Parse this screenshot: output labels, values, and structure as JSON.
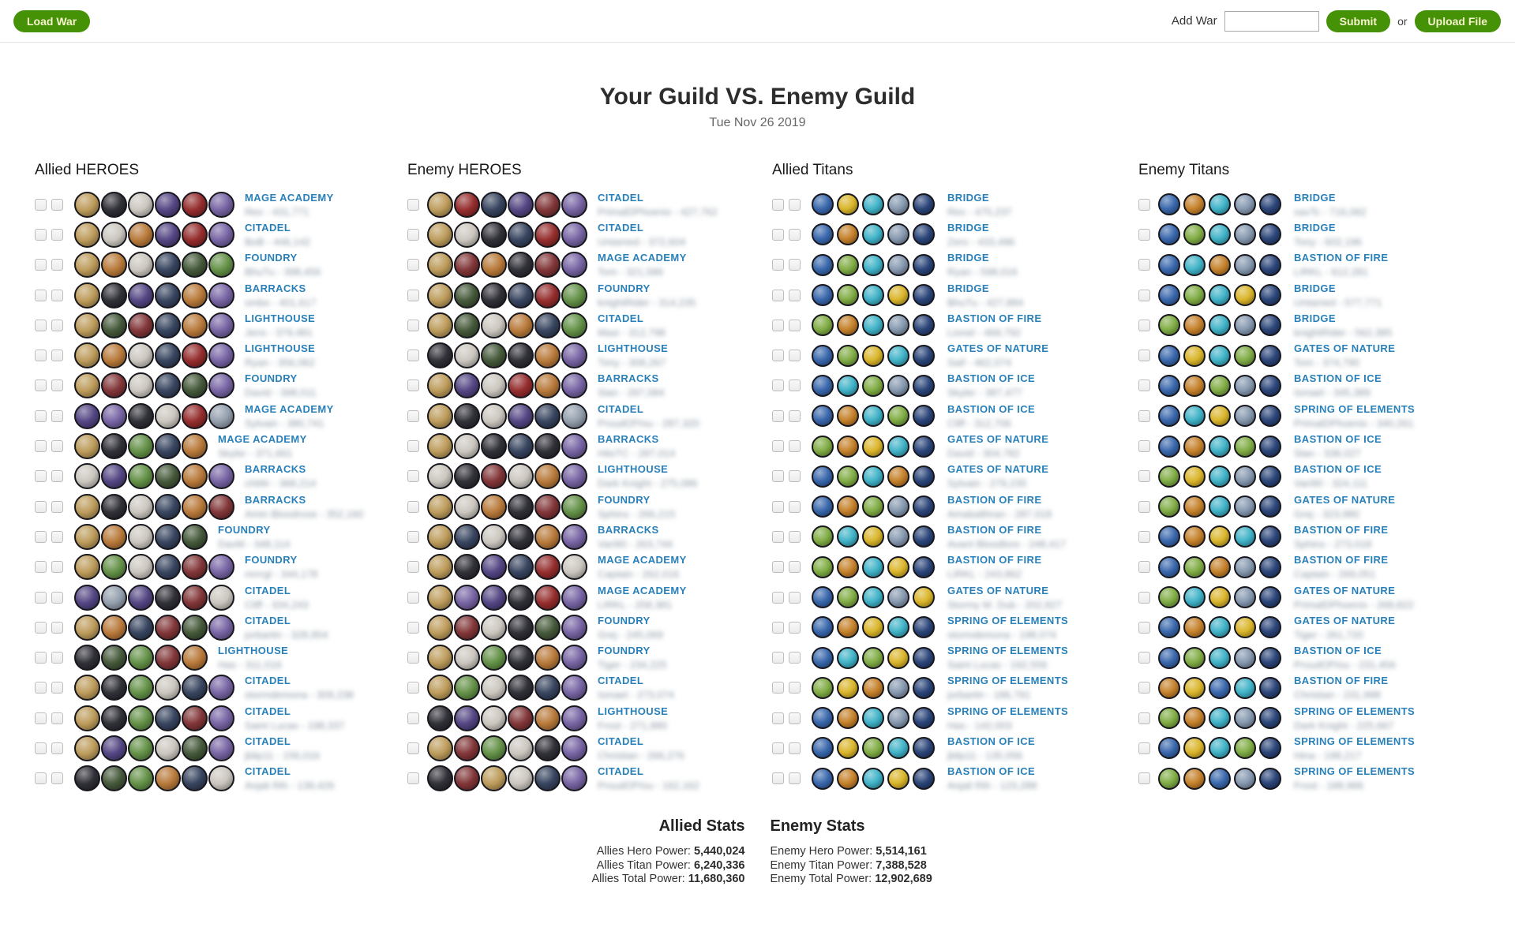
{
  "topbar": {
    "load_war_label": "Load War",
    "add_war_label": "Add War",
    "add_war_value": "",
    "submit_label": "Submit",
    "or_label": "or",
    "upload_label": "Upload File"
  },
  "title": "Your Guild VS. Enemy Guild",
  "date": "Tue Nov 26 2019",
  "colors": {
    "button_green": "#459207",
    "button_text": "#f7f3cd",
    "building_label_blue": "#2980b9",
    "title_text": "#2d2d2d",
    "blurred_text_gray": "#8d9aa6"
  },
  "avatar_palette": {
    "heroes": [
      "#b99652",
      "#7a2a2c",
      "#c8c3bb",
      "#4a3b7c",
      "#8f2121",
      "#6f5b9e",
      "#3a4f2e",
      "#2c3a56",
      "#b4722f",
      "#5a8a3c",
      "#24242c",
      "#8d99a8"
    ],
    "titans": [
      "#2e5fa8",
      "#c27a1f",
      "#35aec4",
      "#7f93ab",
      "#1f3b72",
      "#79a83a",
      "#d8b11f",
      "#8adbe8"
    ]
  },
  "columns": [
    {
      "id": "allied-heroes",
      "header": "Allied HEROES",
      "type": "heroes",
      "checkboxes": 2,
      "rows": [
        {
          "label": "MAGE ACADEMY",
          "blur": "Rex - 431,771",
          "avatars": [
            0,
            10,
            2,
            3,
            4,
            5
          ]
        },
        {
          "label": "CITADEL",
          "blur": "BoB - 446,142",
          "avatars": [
            0,
            2,
            8,
            3,
            4,
            5
          ]
        },
        {
          "label": "FOUNDRY",
          "blur": "BhuTu - 398,456",
          "avatars": [
            0,
            8,
            2,
            7,
            6,
            9
          ]
        },
        {
          "label": "BARRACKS",
          "blur": "smbo - 401,617",
          "avatars": [
            0,
            10,
            3,
            7,
            8,
            5
          ]
        },
        {
          "label": "LIGHTHOUSE",
          "blur": "Jens - 379,481",
          "avatars": [
            0,
            6,
            1,
            7,
            8,
            5
          ]
        },
        {
          "label": "LIGHTHOUSE",
          "blur": "Ryan - 356,062",
          "avatars": [
            0,
            8,
            2,
            7,
            4,
            5
          ]
        },
        {
          "label": "FOUNDRY",
          "blur": "David - 398,011",
          "avatars": [
            0,
            1,
            2,
            7,
            6,
            5
          ]
        },
        {
          "label": "MAGE ACADEMY",
          "blur": "Sylvain - 380,741",
          "avatars": [
            3,
            5,
            10,
            2,
            4,
            11
          ]
        },
        {
          "label": "MAGE ACADEMY",
          "blur": "Skyler - 371,661",
          "avatars": [
            0,
            10,
            9,
            7,
            8
          ]
        },
        {
          "label": "BARRACKS",
          "blur": "chMir - 368,214",
          "avatars": [
            2,
            3,
            9,
            6,
            8,
            5
          ]
        },
        {
          "label": "BARRACKS",
          "blur": "Amin Bloodrose - 352,160",
          "avatars": [
            0,
            10,
            2,
            7,
            8,
            1
          ]
        },
        {
          "label": "FOUNDRY",
          "blur": "DavM - 348,114",
          "avatars": [
            0,
            8,
            2,
            7,
            6
          ]
        },
        {
          "label": "FOUNDRY",
          "blur": "mrrrgl - 344,178",
          "avatars": [
            0,
            9,
            2,
            7,
            1,
            5
          ]
        },
        {
          "label": "CITADEL",
          "blur": "Cliff - 334,243",
          "avatars": [
            3,
            11,
            3,
            10,
            1,
            2
          ]
        },
        {
          "label": "CITADEL",
          "blur": "jorbartin - 328,954",
          "avatars": [
            0,
            8,
            7,
            1,
            6,
            5
          ]
        },
        {
          "label": "LIGHTHOUSE",
          "blur": "Has - 311,016",
          "avatars": [
            10,
            6,
            9,
            1,
            8
          ]
        },
        {
          "label": "CITADEL",
          "blur": "stormdemona - 309,238",
          "avatars": [
            0,
            10,
            9,
            2,
            7,
            5
          ]
        },
        {
          "label": "CITADEL",
          "blur": "Saint Lucas - 198,337",
          "avatars": [
            0,
            10,
            9,
            7,
            1,
            5
          ]
        },
        {
          "label": "CITADEL",
          "blur": "jblip11 - 156,016",
          "avatars": [
            0,
            3,
            9,
            2,
            6,
            5
          ]
        },
        {
          "label": "CITADEL",
          "blur": "Anjali Rih - 139,426",
          "avatars": [
            10,
            6,
            9,
            8,
            7,
            2
          ]
        }
      ]
    },
    {
      "id": "enemy-heroes",
      "header": "Enemy HEROES",
      "type": "heroes",
      "checkboxes": 1,
      "rows": [
        {
          "label": "CITADEL",
          "blur": "PrimalDPhoenix - 427,762",
          "avatars": [
            0,
            4,
            7,
            3,
            1,
            5
          ]
        },
        {
          "label": "CITADEL",
          "blur": "Untamed - 372,604",
          "avatars": [
            0,
            2,
            10,
            7,
            4,
            5
          ]
        },
        {
          "label": "MAGE ACADEMY",
          "blur": "Tom - 321,586",
          "avatars": [
            0,
            1,
            8,
            10,
            1,
            5
          ]
        },
        {
          "label": "FOUNDRY",
          "blur": "knightRider - 314,235",
          "avatars": [
            0,
            6,
            10,
            7,
            4,
            9
          ]
        },
        {
          "label": "CITADEL",
          "blur": "Maxi - 312,798",
          "avatars": [
            0,
            6,
            2,
            8,
            7,
            9
          ]
        },
        {
          "label": "LIGHTHOUSE",
          "blur": "Timy - 308,267",
          "avatars": [
            10,
            2,
            6,
            10,
            8,
            5
          ]
        },
        {
          "label": "BARRACKS",
          "blur": "Slan - 297,084",
          "avatars": [
            0,
            3,
            2,
            4,
            8,
            5
          ]
        },
        {
          "label": "CITADEL",
          "blur": "ProudOfYou - 287,320",
          "avatars": [
            0,
            10,
            2,
            3,
            7,
            11
          ]
        },
        {
          "label": "BARRACKS",
          "blur": "HitsTC - 287,014",
          "avatars": [
            0,
            2,
            10,
            7,
            10,
            5
          ]
        },
        {
          "label": "LIGHTHOUSE",
          "blur": "Dark Knight - 275,086",
          "avatars": [
            2,
            10,
            1,
            2,
            8,
            5
          ]
        },
        {
          "label": "FOUNDRY",
          "blur": "Sphinx - 266,215",
          "avatars": [
            0,
            2,
            8,
            10,
            1,
            9
          ]
        },
        {
          "label": "BARRACKS",
          "blur": "Vari90 - 263,744",
          "avatars": [
            0,
            7,
            2,
            10,
            8,
            5
          ]
        },
        {
          "label": "MAGE ACADEMY",
          "blur": "Captain - 262,016",
          "avatars": [
            0,
            10,
            3,
            7,
            4,
            2
          ]
        },
        {
          "label": "MAGE ACADEMY",
          "blur": "LIRKL - 258,381",
          "avatars": [
            0,
            5,
            3,
            10,
            4,
            5
          ]
        },
        {
          "label": "FOUNDRY",
          "blur": "Grej - 245,069",
          "avatars": [
            0,
            1,
            2,
            10,
            6,
            5
          ]
        },
        {
          "label": "FOUNDRY",
          "blur": "Tiger - 234,225",
          "avatars": [
            0,
            2,
            9,
            10,
            8,
            5
          ]
        },
        {
          "label": "CITADEL",
          "blur": "Ismael - 273,074",
          "avatars": [
            0,
            9,
            2,
            10,
            7,
            5
          ]
        },
        {
          "label": "LIGHTHOUSE",
          "blur": "Frost - 271,880",
          "avatars": [
            10,
            3,
            2,
            1,
            8,
            5
          ]
        },
        {
          "label": "CITADEL",
          "blur": "Christian - 266,276",
          "avatars": [
            0,
            1,
            9,
            2,
            10,
            5
          ]
        },
        {
          "label": "CITADEL",
          "blur": "ProudOfYou - 162,162",
          "avatars": [
            10,
            1,
            0,
            2,
            7,
            5
          ]
        }
      ]
    },
    {
      "id": "allied-titans",
      "header": "Allied Titans",
      "type": "titans",
      "checkboxes": 2,
      "rows": [
        {
          "label": "BRIDGE",
          "blur": "Rex - 475,237",
          "avatars": [
            0,
            6,
            2,
            3,
            4
          ]
        },
        {
          "label": "BRIDGE",
          "blur": "Zero - 433,496",
          "avatars": [
            0,
            1,
            2,
            3,
            4
          ]
        },
        {
          "label": "BRIDGE",
          "blur": "Ryan - 598,016",
          "avatars": [
            0,
            5,
            2,
            3,
            4
          ]
        },
        {
          "label": "BRIDGE",
          "blur": "BhuTu - 427,884",
          "avatars": [
            0,
            5,
            2,
            6,
            4
          ]
        },
        {
          "label": "BASTION OF FIRE",
          "blur": "Lionel - 469,792",
          "avatars": [
            5,
            1,
            2,
            3,
            4
          ]
        },
        {
          "label": "GATES OF NATURE",
          "blur": "Saif - 462,074",
          "avatars": [
            0,
            5,
            6,
            2,
            4
          ]
        },
        {
          "label": "BASTION OF ICE",
          "blur": "Skyler - 387,477",
          "avatars": [
            0,
            2,
            5,
            3,
            4
          ]
        },
        {
          "label": "BASTION OF ICE",
          "blur": "Cliff - 312,706",
          "avatars": [
            0,
            1,
            2,
            5,
            4
          ]
        },
        {
          "label": "GATES OF NATURE",
          "blur": "David - 304,782",
          "avatars": [
            5,
            1,
            6,
            2,
            4
          ]
        },
        {
          "label": "GATES OF NATURE",
          "blur": "Sylvain - 279,235",
          "avatars": [
            0,
            5,
            2,
            1,
            4
          ]
        },
        {
          "label": "BASTION OF FIRE",
          "blur": "Amabalthran - 287,018",
          "avatars": [
            0,
            1,
            5,
            3,
            4
          ]
        },
        {
          "label": "BASTION OF FIRE",
          "blur": "Avant Bloodlore - 248,417",
          "avatars": [
            5,
            2,
            6,
            3,
            4
          ]
        },
        {
          "label": "BASTION OF FIRE",
          "blur": "LIRKL - 243,862",
          "avatars": [
            5,
            1,
            2,
            6,
            4
          ]
        },
        {
          "label": "GATES OF NATURE",
          "blur": "Stormy M. Dub - 202,827",
          "avatars": [
            0,
            5,
            2,
            3,
            6
          ]
        },
        {
          "label": "SPRING OF ELEMENTS",
          "blur": "stormdemona - 198,074",
          "avatars": [
            0,
            1,
            6,
            2,
            4
          ]
        },
        {
          "label": "SPRING OF ELEMENTS",
          "blur": "Saint Lucas - 192,556",
          "avatars": [
            0,
            2,
            5,
            6,
            4
          ]
        },
        {
          "label": "SPRING OF ELEMENTS",
          "blur": "jorbartin - 186,791",
          "avatars": [
            5,
            6,
            1,
            3,
            4
          ]
        },
        {
          "label": "SPRING OF ELEMENTS",
          "blur": "Has - 142,003",
          "avatars": [
            0,
            1,
            2,
            3,
            4
          ]
        },
        {
          "label": "BASTION OF ICE",
          "blur": "jblip11 - 135,056",
          "avatars": [
            0,
            6,
            5,
            2,
            4
          ]
        },
        {
          "label": "BASTION OF ICE",
          "blur": "Anjali Rih - 123,288",
          "avatars": [
            0,
            1,
            2,
            6,
            4
          ]
        }
      ]
    },
    {
      "id": "enemy-titans",
      "header": "Enemy Titans",
      "type": "titans",
      "checkboxes": 1,
      "rows": [
        {
          "label": "BRIDGE",
          "blur": "xavTc - 716,062",
          "avatars": [
            0,
            1,
            2,
            3,
            4
          ]
        },
        {
          "label": "BRIDGE",
          "blur": "Tony - 602,196",
          "avatars": [
            0,
            5,
            2,
            3,
            4
          ]
        },
        {
          "label": "BASTION OF FIRE",
          "blur": "LIRKL - 612,281",
          "avatars": [
            0,
            2,
            1,
            3,
            4
          ]
        },
        {
          "label": "BRIDGE",
          "blur": "Untamed - 577,771",
          "avatars": [
            0,
            5,
            2,
            6,
            4
          ]
        },
        {
          "label": "BRIDGE",
          "blur": "knightRider - 562,385",
          "avatars": [
            5,
            1,
            2,
            3,
            4
          ]
        },
        {
          "label": "GATES OF NATURE",
          "blur": "Tom - 374,790",
          "avatars": [
            0,
            6,
            2,
            5,
            4
          ]
        },
        {
          "label": "BASTION OF ICE",
          "blur": "Ismael - 345,389",
          "avatars": [
            0,
            1,
            5,
            3,
            4
          ]
        },
        {
          "label": "SPRING OF ELEMENTS",
          "blur": "PrimalDPhoenix - 340,261",
          "avatars": [
            0,
            2,
            6,
            3,
            4
          ]
        },
        {
          "label": "BASTION OF ICE",
          "blur": "Slan - 338,027",
          "avatars": [
            0,
            1,
            2,
            5,
            4
          ]
        },
        {
          "label": "BASTION OF ICE",
          "blur": "Vari90 - 324,111",
          "avatars": [
            5,
            6,
            2,
            3,
            4
          ]
        },
        {
          "label": "GATES OF NATURE",
          "blur": "Grej - 323,980",
          "avatars": [
            5,
            1,
            2,
            3,
            4
          ]
        },
        {
          "label": "BASTION OF FIRE",
          "blur": "Sphinx - 273,018",
          "avatars": [
            0,
            1,
            6,
            2,
            4
          ]
        },
        {
          "label": "BASTION OF FIRE",
          "blur": "Captain - 269,051",
          "avatars": [
            0,
            5,
            1,
            3,
            4
          ]
        },
        {
          "label": "GATES OF NATURE",
          "blur": "PrimalDPhoenix - 268,822",
          "avatars": [
            5,
            2,
            6,
            3,
            4
          ]
        },
        {
          "label": "GATES OF NATURE",
          "blur": "Tiger - 261,720",
          "avatars": [
            0,
            1,
            2,
            6,
            4
          ]
        },
        {
          "label": "BASTION OF ICE",
          "blur": "ProudOfYou - 231,456",
          "avatars": [
            0,
            5,
            2,
            3,
            4
          ]
        },
        {
          "label": "BASTION OF FIRE",
          "blur": "Christian - 231,998",
          "avatars": [
            1,
            6,
            0,
            2,
            4
          ]
        },
        {
          "label": "SPRING OF ELEMENTS",
          "blur": "Dark Knight - 225,667",
          "avatars": [
            5,
            1,
            2,
            3,
            4
          ]
        },
        {
          "label": "SPRING OF ELEMENTS",
          "blur": "Hina - 198,217",
          "avatars": [
            0,
            6,
            2,
            5,
            4
          ]
        },
        {
          "label": "SPRING OF ELEMENTS",
          "blur": "Frost - 188,966",
          "avatars": [
            5,
            1,
            0,
            3,
            4
          ]
        }
      ]
    }
  ],
  "stats": {
    "allied": {
      "header": "Allied Stats",
      "rows": [
        {
          "label": "Allies Hero Power:",
          "value": "5,440,024"
        },
        {
          "label": "Allies Titan Power:",
          "value": "6,240,336"
        },
        {
          "label": "Allies Total Power:",
          "value": "11,680,360"
        }
      ]
    },
    "enemy": {
      "header": "Enemy Stats",
      "rows": [
        {
          "label": "Enemy Hero Power:",
          "value": "5,514,161"
        },
        {
          "label": "Enemy Titan Power:",
          "value": "7,388,528"
        },
        {
          "label": "Enemy Total Power:",
          "value": "12,902,689"
        }
      ]
    }
  }
}
